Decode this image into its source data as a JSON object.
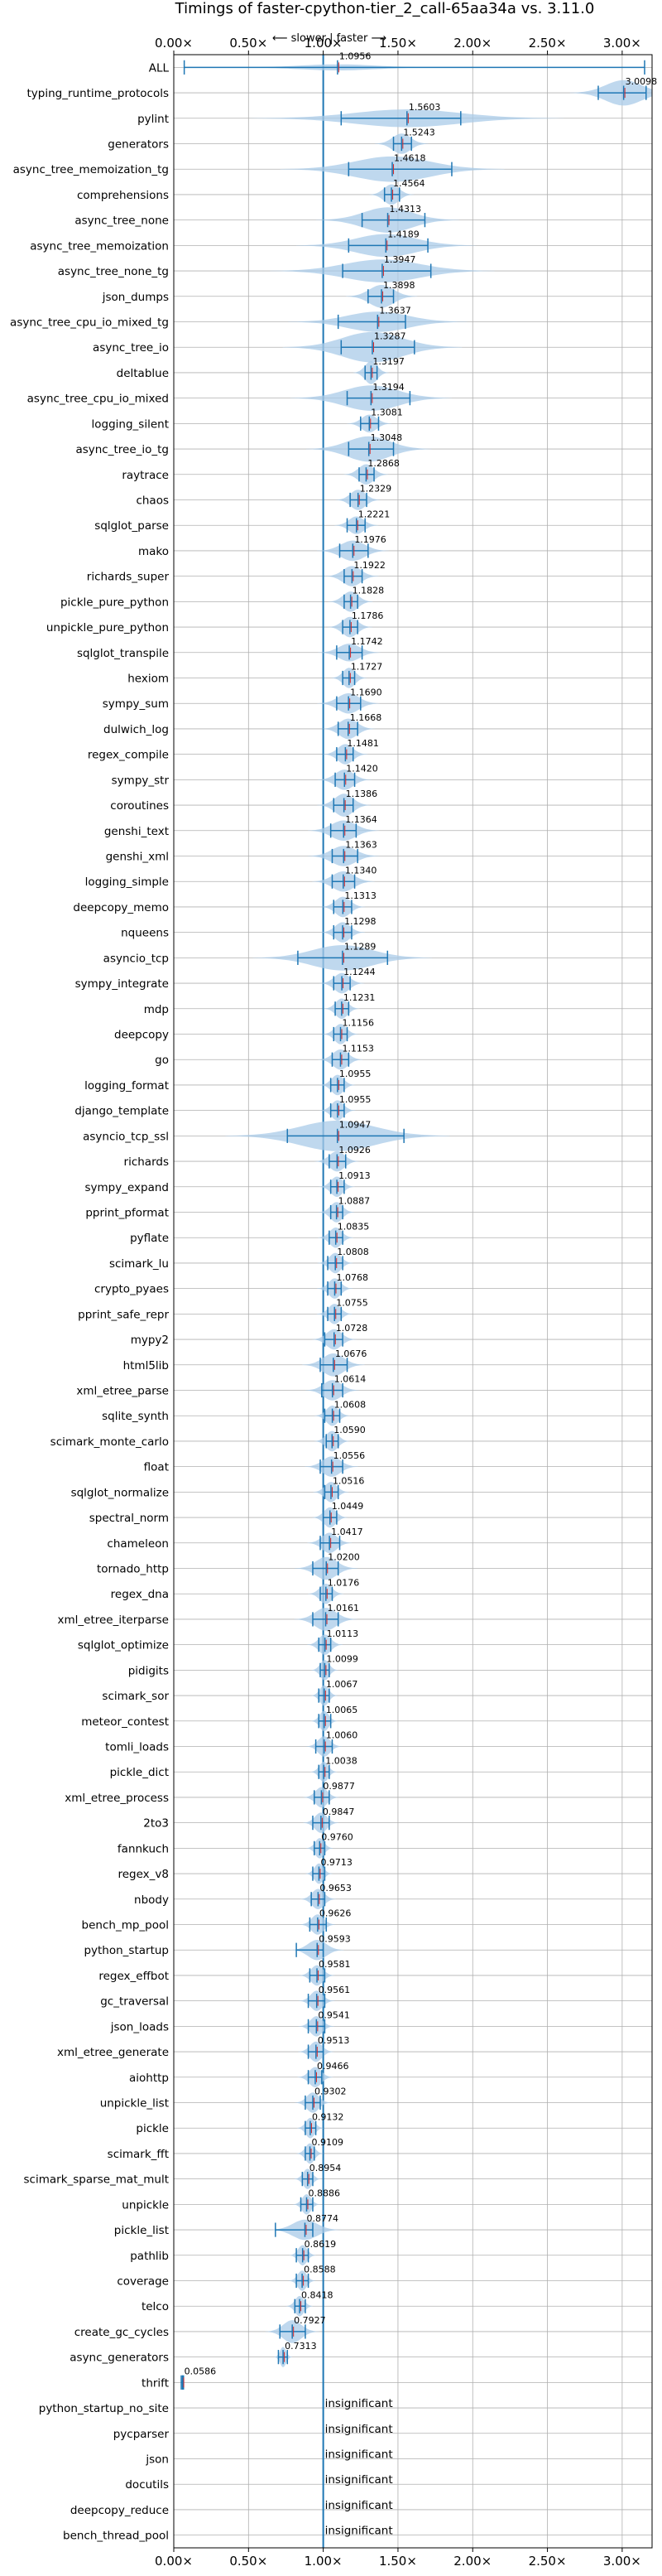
{
  "chart_data": {
    "type": "violin",
    "title": "Timings of faster-cpython-tier_2_call-65aa34a vs. 3.11.0",
    "direction_label": "⟵ slower | faster ⟶",
    "xlim": [
      0,
      3.2
    ],
    "x_ticks": [
      0,
      0.5,
      1,
      1.5,
      2,
      2.5,
      3
    ],
    "x_tick_labels": [
      "0.00×",
      "0.50×",
      "1.00×",
      "1.50×",
      "2.00×",
      "2.50×",
      "3.00×"
    ],
    "reference_line": 1.0,
    "grid": true,
    "colors": {
      "violin": "#a9cbe8",
      "whisker": "#1f77b4",
      "median": "#d62728",
      "reference": "#1f77b4",
      "grid": "#b0b0b0"
    },
    "benchmarks": [
      {
        "name": "ALL",
        "label": "1.0956",
        "value": 1.0956,
        "min": 0.07,
        "max": 3.15,
        "spread": 0.25,
        "width": 0.12
      },
      {
        "name": "typing_runtime_protocols",
        "label": "3.0098",
        "value": 3.0098,
        "min": 2.84,
        "max": 3.16,
        "spread": 0.12,
        "width": 0.5
      },
      {
        "name": "pylint",
        "label": "1.5603",
        "value": 1.5603,
        "min": 1.12,
        "max": 1.92,
        "spread": 0.35,
        "width": 0.35
      },
      {
        "name": "generators",
        "label": "1.5243",
        "value": 1.5243,
        "min": 1.47,
        "max": 1.59,
        "spread": 0.06,
        "width": 0.4
      },
      {
        "name": "async_tree_memoization_tg",
        "label": "1.4618",
        "value": 1.4618,
        "min": 1.17,
        "max": 1.86,
        "spread": 0.25,
        "width": 0.5
      },
      {
        "name": "comprehensions",
        "label": "1.4564",
        "value": 1.4564,
        "min": 1.41,
        "max": 1.51,
        "spread": 0.05,
        "width": 0.4
      },
      {
        "name": "async_tree_none",
        "label": "1.4313",
        "value": 1.4313,
        "min": 1.26,
        "max": 1.68,
        "spread": 0.16,
        "width": 0.5
      },
      {
        "name": "async_tree_memoization",
        "label": "1.4189",
        "value": 1.4189,
        "min": 1.17,
        "max": 1.7,
        "spread": 0.2,
        "width": 0.45
      },
      {
        "name": "async_tree_none_tg",
        "label": "1.3947",
        "value": 1.3947,
        "min": 1.13,
        "max": 1.72,
        "spread": 0.25,
        "width": 0.45
      },
      {
        "name": "json_dumps",
        "label": "1.3898",
        "value": 1.3898,
        "min": 1.3,
        "max": 1.47,
        "spread": 0.08,
        "width": 0.45
      },
      {
        "name": "async_tree_cpu_io_mixed_tg",
        "label": "1.3637",
        "value": 1.3637,
        "min": 1.1,
        "max": 1.55,
        "spread": 0.2,
        "width": 0.4
      },
      {
        "name": "async_tree_io",
        "label": "1.3287",
        "value": 1.3287,
        "min": 1.12,
        "max": 1.61,
        "spread": 0.2,
        "width": 0.6
      },
      {
        "name": "deltablue",
        "label": "1.3197",
        "value": 1.3197,
        "min": 1.28,
        "max": 1.36,
        "spread": 0.04,
        "width": 0.45
      },
      {
        "name": "async_tree_cpu_io_mixed",
        "label": "1.3194",
        "value": 1.3194,
        "min": 1.16,
        "max": 1.58,
        "spread": 0.18,
        "width": 0.5
      },
      {
        "name": "logging_silent",
        "label": "1.3081",
        "value": 1.3081,
        "min": 1.25,
        "max": 1.37,
        "spread": 0.05,
        "width": 0.35
      },
      {
        "name": "async_tree_io_tg",
        "label": "1.3048",
        "value": 1.3048,
        "min": 1.17,
        "max": 1.47,
        "spread": 0.14,
        "width": 0.5
      },
      {
        "name": "raytrace",
        "label": "1.2868",
        "value": 1.2868,
        "min": 1.24,
        "max": 1.34,
        "spread": 0.05,
        "width": 0.4
      },
      {
        "name": "chaos",
        "label": "1.2329",
        "value": 1.2329,
        "min": 1.18,
        "max": 1.29,
        "spread": 0.05,
        "width": 0.4
      },
      {
        "name": "sqlglot_parse",
        "label": "1.2221",
        "value": 1.2221,
        "min": 1.16,
        "max": 1.28,
        "spread": 0.05,
        "width": 0.35
      },
      {
        "name": "mako",
        "label": "1.1976",
        "value": 1.1976,
        "min": 1.11,
        "max": 1.3,
        "spread": 0.08,
        "width": 0.4
      },
      {
        "name": "richards_super",
        "label": "1.1922",
        "value": 1.1922,
        "min": 1.14,
        "max": 1.26,
        "spread": 0.06,
        "width": 0.4
      },
      {
        "name": "pickle_pure_python",
        "label": "1.1828",
        "value": 1.1828,
        "min": 1.14,
        "max": 1.23,
        "spread": 0.05,
        "width": 0.4
      },
      {
        "name": "unpickle_pure_python",
        "label": "1.1786",
        "value": 1.1786,
        "min": 1.13,
        "max": 1.23,
        "spread": 0.05,
        "width": 0.4
      },
      {
        "name": "sqlglot_transpile",
        "label": "1.1742",
        "value": 1.1742,
        "min": 1.09,
        "max": 1.26,
        "spread": 0.07,
        "width": 0.35
      },
      {
        "name": "hexiom",
        "label": "1.1727",
        "value": 1.1727,
        "min": 1.13,
        "max": 1.21,
        "spread": 0.04,
        "width": 0.4
      },
      {
        "name": "sympy_sum",
        "label": "1.1690",
        "value": 1.169,
        "min": 1.09,
        "max": 1.25,
        "spread": 0.07,
        "width": 0.4
      },
      {
        "name": "dulwich_log",
        "label": "1.1668",
        "value": 1.1668,
        "min": 1.1,
        "max": 1.23,
        "spread": 0.06,
        "width": 0.4
      },
      {
        "name": "regex_compile",
        "label": "1.1481",
        "value": 1.1481,
        "min": 1.09,
        "max": 1.2,
        "spread": 0.05,
        "width": 0.4
      },
      {
        "name": "sympy_str",
        "label": "1.1420",
        "value": 1.142,
        "min": 1.08,
        "max": 1.21,
        "spread": 0.06,
        "width": 0.4
      },
      {
        "name": "coroutines",
        "label": "1.1386",
        "value": 1.1386,
        "min": 1.07,
        "max": 1.2,
        "spread": 0.06,
        "width": 0.45
      },
      {
        "name": "genshi_text",
        "label": "1.1364",
        "value": 1.1364,
        "min": 1.05,
        "max": 1.22,
        "spread": 0.08,
        "width": 0.4
      },
      {
        "name": "genshi_xml",
        "label": "1.1363",
        "value": 1.1363,
        "min": 1.06,
        "max": 1.23,
        "spread": 0.08,
        "width": 0.4
      },
      {
        "name": "logging_simple",
        "label": "1.1340",
        "value": 1.134,
        "min": 1.06,
        "max": 1.21,
        "spread": 0.07,
        "width": 0.4
      },
      {
        "name": "deepcopy_memo",
        "label": "1.1313",
        "value": 1.1313,
        "min": 1.07,
        "max": 1.19,
        "spread": 0.05,
        "width": 0.4
      },
      {
        "name": "nqueens",
        "label": "1.1298",
        "value": 1.1298,
        "min": 1.07,
        "max": 1.19,
        "spread": 0.05,
        "width": 0.4
      },
      {
        "name": "asyncio_tcp",
        "label": "1.1289",
        "value": 1.1289,
        "min": 0.83,
        "max": 1.43,
        "spread": 0.2,
        "width": 0.5
      },
      {
        "name": "sympy_integrate",
        "label": "1.1244",
        "value": 1.1244,
        "min": 1.07,
        "max": 1.18,
        "spread": 0.05,
        "width": 0.4
      },
      {
        "name": "mdp",
        "label": "1.1231",
        "value": 1.1231,
        "min": 1.08,
        "max": 1.17,
        "spread": 0.04,
        "width": 0.4
      },
      {
        "name": "deepcopy",
        "label": "1.1156",
        "value": 1.1156,
        "min": 1.07,
        "max": 1.16,
        "spread": 0.04,
        "width": 0.4
      },
      {
        "name": "go",
        "label": "1.1153",
        "value": 1.1153,
        "min": 1.06,
        "max": 1.17,
        "spread": 0.05,
        "width": 0.4
      },
      {
        "name": "logging_format",
        "label": "1.0955",
        "value": 1.0955,
        "min": 1.05,
        "max": 1.14,
        "spread": 0.04,
        "width": 0.4
      },
      {
        "name": "django_template",
        "label": "1.0955",
        "value": 1.0955,
        "min": 1.05,
        "max": 1.14,
        "spread": 0.04,
        "width": 0.4
      },
      {
        "name": "asyncio_tcp_ssl",
        "label": "1.0947",
        "value": 1.0947,
        "min": 0.76,
        "max": 1.54,
        "spread": 0.25,
        "width": 0.6
      },
      {
        "name": "richards",
        "label": "1.0926",
        "value": 1.0926,
        "min": 1.04,
        "max": 1.15,
        "spread": 0.05,
        "width": 0.4
      },
      {
        "name": "sympy_expand",
        "label": "1.0913",
        "value": 1.0913,
        "min": 1.05,
        "max": 1.14,
        "spread": 0.04,
        "width": 0.4
      },
      {
        "name": "pprint_pformat",
        "label": "1.0887",
        "value": 1.0887,
        "min": 1.05,
        "max": 1.13,
        "spread": 0.04,
        "width": 0.4
      },
      {
        "name": "pyflate",
        "label": "1.0835",
        "value": 1.0835,
        "min": 1.04,
        "max": 1.13,
        "spread": 0.04,
        "width": 0.4
      },
      {
        "name": "scimark_lu",
        "label": "1.0808",
        "value": 1.0808,
        "min": 1.03,
        "max": 1.13,
        "spread": 0.04,
        "width": 0.4
      },
      {
        "name": "crypto_pyaes",
        "label": "1.0768",
        "value": 1.0768,
        "min": 1.03,
        "max": 1.12,
        "spread": 0.04,
        "width": 0.4
      },
      {
        "name": "pprint_safe_repr",
        "label": "1.0755",
        "value": 1.0755,
        "min": 1.03,
        "max": 1.12,
        "spread": 0.04,
        "width": 0.4
      },
      {
        "name": "mypy2",
        "label": "1.0728",
        "value": 1.0728,
        "min": 1.01,
        "max": 1.13,
        "spread": 0.05,
        "width": 0.4
      },
      {
        "name": "html5lib",
        "label": "1.0676",
        "value": 1.0676,
        "min": 0.98,
        "max": 1.16,
        "spread": 0.07,
        "width": 0.45
      },
      {
        "name": "xml_etree_parse",
        "label": "1.0614",
        "value": 1.0614,
        "min": 0.99,
        "max": 1.13,
        "spread": 0.06,
        "width": 0.4
      },
      {
        "name": "sqlite_synth",
        "label": "1.0608",
        "value": 1.0608,
        "min": 1.01,
        "max": 1.11,
        "spread": 0.04,
        "width": 0.4
      },
      {
        "name": "scimark_monte_carlo",
        "label": "1.0590",
        "value": 1.059,
        "min": 1.02,
        "max": 1.1,
        "spread": 0.04,
        "width": 0.4
      },
      {
        "name": "float",
        "label": "1.0556",
        "value": 1.0556,
        "min": 0.98,
        "max": 1.13,
        "spread": 0.06,
        "width": 0.4
      },
      {
        "name": "sqlglot_normalize",
        "label": "1.0516",
        "value": 1.0516,
        "min": 1.01,
        "max": 1.1,
        "spread": 0.04,
        "width": 0.4
      },
      {
        "name": "spectral_norm",
        "label": "1.0449",
        "value": 1.0449,
        "min": 1.0,
        "max": 1.09,
        "spread": 0.04,
        "width": 0.4
      },
      {
        "name": "chameleon",
        "label": "1.0417",
        "value": 1.0417,
        "min": 0.98,
        "max": 1.11,
        "spread": 0.05,
        "width": 0.4
      },
      {
        "name": "tornado_http",
        "label": "1.0200",
        "value": 1.02,
        "min": 0.93,
        "max": 1.1,
        "spread": 0.07,
        "width": 0.45
      },
      {
        "name": "regex_dna",
        "label": "1.0176",
        "value": 1.0176,
        "min": 0.98,
        "max": 1.06,
        "spread": 0.04,
        "width": 0.4
      },
      {
        "name": "xml_etree_iterparse",
        "label": "1.0161",
        "value": 1.0161,
        "min": 0.93,
        "max": 1.1,
        "spread": 0.07,
        "width": 0.45
      },
      {
        "name": "sqlglot_optimize",
        "label": "1.0113",
        "value": 1.0113,
        "min": 0.97,
        "max": 1.05,
        "spread": 0.04,
        "width": 0.4
      },
      {
        "name": "pidigits",
        "label": "1.0099",
        "value": 1.0099,
        "min": 0.98,
        "max": 1.04,
        "spread": 0.03,
        "width": 0.4
      },
      {
        "name": "scimark_sor",
        "label": "1.0067",
        "value": 1.0067,
        "min": 0.97,
        "max": 1.04,
        "spread": 0.03,
        "width": 0.4
      },
      {
        "name": "meteor_contest",
        "label": "1.0065",
        "value": 1.0065,
        "min": 0.97,
        "max": 1.05,
        "spread": 0.03,
        "width": 0.4
      },
      {
        "name": "tomli_loads",
        "label": "1.0060",
        "value": 1.006,
        "min": 0.95,
        "max": 1.06,
        "spread": 0.04,
        "width": 0.4
      },
      {
        "name": "pickle_dict",
        "label": "1.0038",
        "value": 1.0038,
        "min": 0.97,
        "max": 1.04,
        "spread": 0.03,
        "width": 0.4
      },
      {
        "name": "xml_etree_process",
        "label": "0.9877",
        "value": 0.9877,
        "min": 0.94,
        "max": 1.04,
        "spread": 0.04,
        "width": 0.4
      },
      {
        "name": "2to3",
        "label": "0.9847",
        "value": 0.9847,
        "min": 0.93,
        "max": 1.04,
        "spread": 0.04,
        "width": 0.4
      },
      {
        "name": "fannkuch",
        "label": "0.9760",
        "value": 0.976,
        "min": 0.94,
        "max": 1.01,
        "spread": 0.03,
        "width": 0.4
      },
      {
        "name": "regex_v8",
        "label": "0.9713",
        "value": 0.9713,
        "min": 0.93,
        "max": 1.01,
        "spread": 0.03,
        "width": 0.4
      },
      {
        "name": "nbody",
        "label": "0.9653",
        "value": 0.9653,
        "min": 0.92,
        "max": 1.01,
        "spread": 0.04,
        "width": 0.4
      },
      {
        "name": "bench_mp_pool",
        "label": "0.9626",
        "value": 0.9626,
        "min": 0.91,
        "max": 1.02,
        "spread": 0.04,
        "width": 0.4
      },
      {
        "name": "python_startup",
        "label": "0.9593",
        "value": 0.9593,
        "min": 0.82,
        "max": 1.0,
        "spread": 0.06,
        "width": 0.4
      },
      {
        "name": "regex_effbot",
        "label": "0.9581",
        "value": 0.9581,
        "min": 0.91,
        "max": 1.01,
        "spread": 0.04,
        "width": 0.4
      },
      {
        "name": "gc_traversal",
        "label": "0.9561",
        "value": 0.9561,
        "min": 0.9,
        "max": 1.01,
        "spread": 0.04,
        "width": 0.4
      },
      {
        "name": "json_loads",
        "label": "0.9541",
        "value": 0.9541,
        "min": 0.9,
        "max": 1.01,
        "spread": 0.04,
        "width": 0.4
      },
      {
        "name": "xml_etree_generate",
        "label": "0.9513",
        "value": 0.9513,
        "min": 0.9,
        "max": 1.0,
        "spread": 0.04,
        "width": 0.4
      },
      {
        "name": "aiohttp",
        "label": "0.9466",
        "value": 0.9466,
        "min": 0.9,
        "max": 0.99,
        "spread": 0.04,
        "width": 0.4
      },
      {
        "name": "unpickle_list",
        "label": "0.9302",
        "value": 0.9302,
        "min": 0.88,
        "max": 0.98,
        "spread": 0.04,
        "width": 0.4
      },
      {
        "name": "pickle",
        "label": "0.9132",
        "value": 0.9132,
        "min": 0.88,
        "max": 0.95,
        "spread": 0.03,
        "width": 0.4
      },
      {
        "name": "scimark_fft",
        "label": "0.9109",
        "value": 0.9109,
        "min": 0.88,
        "max": 0.94,
        "spread": 0.03,
        "width": 0.4
      },
      {
        "name": "scimark_sparse_mat_mult",
        "label": "0.8954",
        "value": 0.8954,
        "min": 0.86,
        "max": 0.93,
        "spread": 0.03,
        "width": 0.4
      },
      {
        "name": "unpickle",
        "label": "0.8886",
        "value": 0.8886,
        "min": 0.85,
        "max": 0.93,
        "spread": 0.03,
        "width": 0.4
      },
      {
        "name": "pickle_list",
        "label": "0.8774",
        "value": 0.8774,
        "min": 0.68,
        "max": 0.93,
        "spread": 0.08,
        "width": 0.4
      },
      {
        "name": "pathlib",
        "label": "0.8619",
        "value": 0.8619,
        "min": 0.82,
        "max": 0.9,
        "spread": 0.03,
        "width": 0.4
      },
      {
        "name": "coverage",
        "label": "0.8588",
        "value": 0.8588,
        "min": 0.82,
        "max": 0.9,
        "spread": 0.03,
        "width": 0.4
      },
      {
        "name": "telco",
        "label": "0.8418",
        "value": 0.8418,
        "min": 0.81,
        "max": 0.88,
        "spread": 0.03,
        "width": 0.4
      },
      {
        "name": "create_gc_cycles",
        "label": "0.7927",
        "value": 0.7927,
        "min": 0.71,
        "max": 0.88,
        "spread": 0.06,
        "width": 0.45
      },
      {
        "name": "async_generators",
        "label": "0.7313",
        "value": 0.7313,
        "min": 0.7,
        "max": 0.76,
        "spread": 0.02,
        "width": 0.4
      },
      {
        "name": "thrift",
        "label": "0.0586",
        "value": 0.0586,
        "min": 0.05,
        "max": 0.065,
        "spread": 0.005,
        "width": 0.3
      },
      {
        "name": "python_startup_no_site",
        "label": "insignificant",
        "value": null
      },
      {
        "name": "pycparser",
        "label": "insignificant",
        "value": null
      },
      {
        "name": "json",
        "label": "insignificant",
        "value": null
      },
      {
        "name": "docutils",
        "label": "insignificant",
        "value": null
      },
      {
        "name": "deepcopy_reduce",
        "label": "insignificant",
        "value": null
      },
      {
        "name": "bench_thread_pool",
        "label": "insignificant",
        "value": null
      }
    ]
  }
}
